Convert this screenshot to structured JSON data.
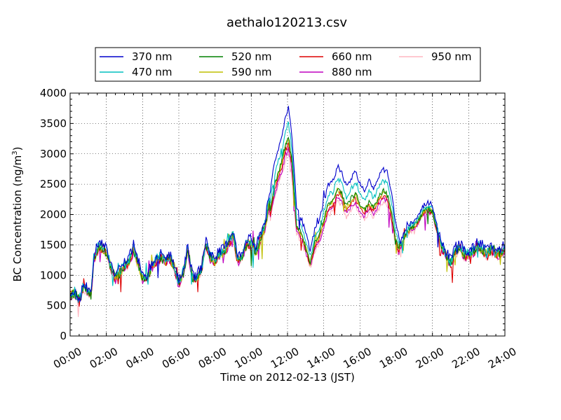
{
  "chart_data": {
    "type": "line",
    "title": "aethalo120213.csv",
    "xlabel": "Time on 2012-02-13 (JST)",
    "ylabel": "BC Concentration (ng/m",
    "ylabel_sup": "3",
    "ylabel_end": ")",
    "xlim": [
      "00:00",
      "24:00"
    ],
    "ylim": [
      0,
      4000
    ],
    "x_ticks": [
      "00:00",
      "02:00",
      "04:00",
      "06:00",
      "08:00",
      "10:00",
      "12:00",
      "14:00",
      "16:00",
      "18:00",
      "20:00",
      "22:00",
      "24:00"
    ],
    "y_ticks": [
      "0",
      "500",
      "1000",
      "1500",
      "2000",
      "2500",
      "3000",
      "3500",
      "4000"
    ],
    "grid": true,
    "legend_position": "top-center",
    "series": [
      {
        "name": "370 nm",
        "color": "#0000cc",
        "scale": 1.0
      },
      {
        "name": "470 nm",
        "color": "#00bfbf",
        "scale": 0.93
      },
      {
        "name": "520 nm",
        "color": "#008000",
        "scale": 0.87
      },
      {
        "name": "590 nm",
        "color": "#bfbf00",
        "scale": 0.86
      },
      {
        "name": "660 nm",
        "color": "#dd0000",
        "scale": 0.84
      },
      {
        "name": "880 nm",
        "color": "#bf00bf",
        "scale": 0.82
      },
      {
        "name": "950 nm",
        "color": "#ffb6c1",
        "scale": 0.8
      }
    ],
    "base_profile_370nm": [
      [
        0.0,
        700
      ],
      [
        0.25,
        750
      ],
      [
        0.5,
        600
      ],
      [
        0.75,
        850
      ],
      [
        1.0,
        780
      ],
      [
        1.15,
        700
      ],
      [
        1.3,
        1300
      ],
      [
        1.5,
        1500
      ],
      [
        1.75,
        1550
      ],
      [
        2.0,
        1450
      ],
      [
        2.25,
        1200
      ],
      [
        2.5,
        1000
      ],
      [
        2.75,
        1100
      ],
      [
        3.0,
        1200
      ],
      [
        3.25,
        1300
      ],
      [
        3.5,
        1500
      ],
      [
        3.75,
        1250
      ],
      [
        4.0,
        1000
      ],
      [
        4.25,
        1000
      ],
      [
        4.5,
        1200
      ],
      [
        4.75,
        1300
      ],
      [
        5.0,
        1350
      ],
      [
        5.25,
        1300
      ],
      [
        5.5,
        1350
      ],
      [
        5.75,
        1200
      ],
      [
        6.0,
        900
      ],
      [
        6.25,
        1100
      ],
      [
        6.5,
        1500
      ],
      [
        6.75,
        1000
      ],
      [
        7.0,
        1000
      ],
      [
        7.25,
        1150
      ],
      [
        7.5,
        1600
      ],
      [
        7.75,
        1350
      ],
      [
        8.0,
        1300
      ],
      [
        8.25,
        1400
      ],
      [
        8.5,
        1450
      ],
      [
        8.75,
        1600
      ],
      [
        9.0,
        1750
      ],
      [
        9.25,
        1300
      ],
      [
        9.5,
        1400
      ],
      [
        9.75,
        1600
      ],
      [
        10.0,
        1600
      ],
      [
        10.25,
        1450
      ],
      [
        10.5,
        1700
      ],
      [
        10.75,
        1900
      ],
      [
        11.0,
        2300
      ],
      [
        11.25,
        2800
      ],
      [
        11.5,
        3100
      ],
      [
        11.75,
        3400
      ],
      [
        11.9,
        3650
      ],
      [
        12.05,
        3750
      ],
      [
        12.2,
        3450
      ],
      [
        12.35,
        2800
      ],
      [
        12.5,
        2100
      ],
      [
        12.75,
        1950
      ],
      [
        13.0,
        1700
      ],
      [
        13.25,
        1400
      ],
      [
        13.5,
        1750
      ],
      [
        13.75,
        1900
      ],
      [
        14.0,
        2200
      ],
      [
        14.25,
        2500
      ],
      [
        14.5,
        2550
      ],
      [
        14.75,
        2800
      ],
      [
        15.0,
        2700
      ],
      [
        15.25,
        2450
      ],
      [
        15.5,
        2600
      ],
      [
        15.75,
        2700
      ],
      [
        16.0,
        2500
      ],
      [
        16.25,
        2400
      ],
      [
        16.5,
        2550
      ],
      [
        16.75,
        2450
      ],
      [
        17.0,
        2600
      ],
      [
        17.25,
        2750
      ],
      [
        17.5,
        2700
      ],
      [
        17.75,
        2350
      ],
      [
        18.0,
        1800
      ],
      [
        18.25,
        1550
      ],
      [
        18.5,
        1750
      ],
      [
        18.75,
        1850
      ],
      [
        19.0,
        1900
      ],
      [
        19.25,
        2000
      ],
      [
        19.5,
        2150
      ],
      [
        19.75,
        2200
      ],
      [
        20.0,
        2150
      ],
      [
        20.25,
        1850
      ],
      [
        20.5,
        1550
      ],
      [
        20.75,
        1400
      ],
      [
        21.0,
        1250
      ],
      [
        21.25,
        1450
      ],
      [
        21.5,
        1550
      ],
      [
        21.75,
        1400
      ],
      [
        22.0,
        1400
      ],
      [
        22.25,
        1450
      ],
      [
        22.5,
        1550
      ],
      [
        22.75,
        1500
      ],
      [
        23.0,
        1400
      ],
      [
        23.25,
        1500
      ],
      [
        23.5,
        1400
      ],
      [
        23.75,
        1450
      ],
      [
        24.0,
        1500
      ]
    ]
  }
}
